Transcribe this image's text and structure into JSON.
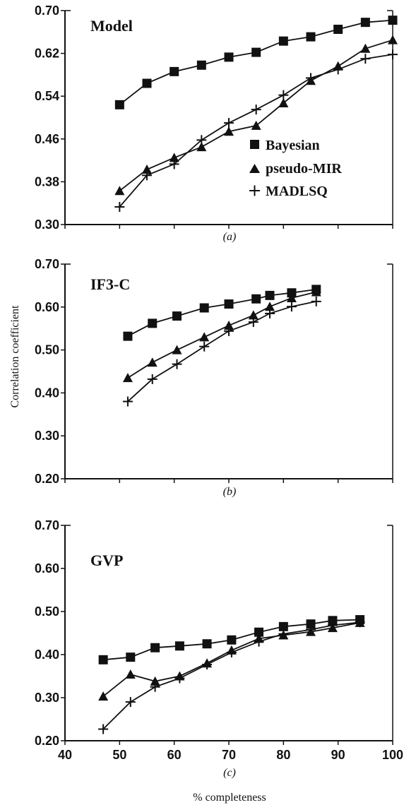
{
  "ylabel": "Correlation coefficient",
  "xlabel": "% completeness",
  "legend": [
    {
      "label": "Bayesian",
      "marker": "square"
    },
    {
      "label": "pseudo-MIR",
      "marker": "triangle"
    },
    {
      "label": "MADLSQ",
      "marker": "plus"
    }
  ],
  "chart_data": [
    {
      "type": "line",
      "title": "Model",
      "caption": "(a)",
      "xlim": [
        40,
        100
      ],
      "ylim": [
        0.3,
        0.7
      ],
      "yticks": [
        "0.70",
        "0.62",
        "0.54",
        "0.46",
        "0.38",
        "0.30"
      ],
      "ytick_values": [
        0.7,
        0.62,
        0.54,
        0.46,
        0.38,
        0.3
      ],
      "legend_placement": "right",
      "series": [
        {
          "name": "Bayesian",
          "marker": "square",
          "x": [
            50,
            55,
            60,
            65,
            70,
            75,
            80,
            85,
            90,
            95,
            100
          ],
          "y": [
            0.524,
            0.564,
            0.586,
            0.598,
            0.613,
            0.622,
            0.643,
            0.651,
            0.665,
            0.678,
            0.682
          ]
        },
        {
          "name": "pseudo-MIR",
          "marker": "triangle",
          "x": [
            50,
            55,
            60,
            65,
            70,
            75,
            80,
            85,
            90,
            95,
            100
          ],
          "y": [
            0.363,
            0.403,
            0.425,
            0.445,
            0.474,
            0.485,
            0.527,
            0.569,
            0.596,
            0.629,
            0.645
          ]
        },
        {
          "name": "MADLSQ",
          "marker": "plus",
          "x": [
            50,
            55,
            60,
            65,
            70,
            75,
            80,
            85,
            90,
            95,
            100
          ],
          "y": [
            0.333,
            0.392,
            0.413,
            0.458,
            0.49,
            0.515,
            0.542,
            0.574,
            0.59,
            0.61,
            0.618
          ]
        }
      ]
    },
    {
      "type": "line",
      "title": "IF3-C",
      "caption": "(b)",
      "xlim": [
        40,
        100
      ],
      "ylim": [
        0.2,
        0.7
      ],
      "yticks": [
        "0.70",
        "0.60",
        "0.50",
        "0.40",
        "0.30",
        "0.20"
      ],
      "ytick_values": [
        0.7,
        0.6,
        0.5,
        0.4,
        0.3,
        0.2
      ],
      "series": [
        {
          "name": "Bayesian",
          "marker": "square",
          "x": [
            51.5,
            56,
            60.5,
            65.5,
            70,
            75,
            77.5,
            81.5,
            86
          ],
          "y": [
            0.532,
            0.562,
            0.579,
            0.598,
            0.607,
            0.619,
            0.627,
            0.633,
            0.641
          ]
        },
        {
          "name": "pseudo-MIR",
          "marker": "triangle",
          "x": [
            51.5,
            56,
            60.5,
            65.5,
            70,
            74.5,
            77.5,
            81.5,
            86
          ],
          "y": [
            0.435,
            0.471,
            0.5,
            0.53,
            0.557,
            0.581,
            0.601,
            0.621,
            0.635
          ]
        },
        {
          "name": "MADLSQ",
          "marker": "plus",
          "x": [
            51.5,
            56,
            60.5,
            65.5,
            70,
            74.5,
            77.5,
            81.5,
            86
          ],
          "y": [
            0.38,
            0.432,
            0.467,
            0.508,
            0.544,
            0.565,
            0.585,
            0.601,
            0.613
          ]
        }
      ]
    },
    {
      "type": "line",
      "title": "GVP",
      "caption": "(c)",
      "xlim": [
        40,
        100
      ],
      "ylim": [
        0.2,
        0.7
      ],
      "yticks": [
        "0.70",
        "0.60",
        "0.50",
        "0.40",
        "0.30",
        "0.20"
      ],
      "ytick_values": [
        0.7,
        0.6,
        0.5,
        0.4,
        0.3,
        0.2
      ],
      "xticks": [
        "40",
        "50",
        "60",
        "70",
        "80",
        "90",
        "100"
      ],
      "xtick_values": [
        40,
        50,
        60,
        70,
        80,
        90,
        100
      ],
      "series": [
        {
          "name": "Bayesian",
          "marker": "square",
          "x": [
            47,
            52,
            56.5,
            61,
            66,
            70.5,
            75.5,
            80,
            85,
            89,
            94
          ],
          "y": [
            0.388,
            0.394,
            0.416,
            0.42,
            0.425,
            0.434,
            0.452,
            0.465,
            0.471,
            0.479,
            0.481
          ]
        },
        {
          "name": "pseudo-MIR",
          "marker": "triangle",
          "x": [
            47,
            52,
            56.5,
            61,
            66,
            70.5,
            75.5,
            80,
            85,
            89,
            94
          ],
          "y": [
            0.303,
            0.354,
            0.338,
            0.35,
            0.38,
            0.41,
            0.437,
            0.445,
            0.453,
            0.462,
            0.474
          ]
        },
        {
          "name": "MADLSQ",
          "marker": "plus",
          "x": [
            47,
            52,
            56.5,
            61,
            66,
            70.5,
            75.5,
            80,
            85,
            89,
            94
          ],
          "y": [
            0.227,
            0.29,
            0.325,
            0.345,
            0.377,
            0.405,
            0.43,
            0.448,
            0.458,
            0.468,
            0.475
          ]
        }
      ]
    }
  ]
}
